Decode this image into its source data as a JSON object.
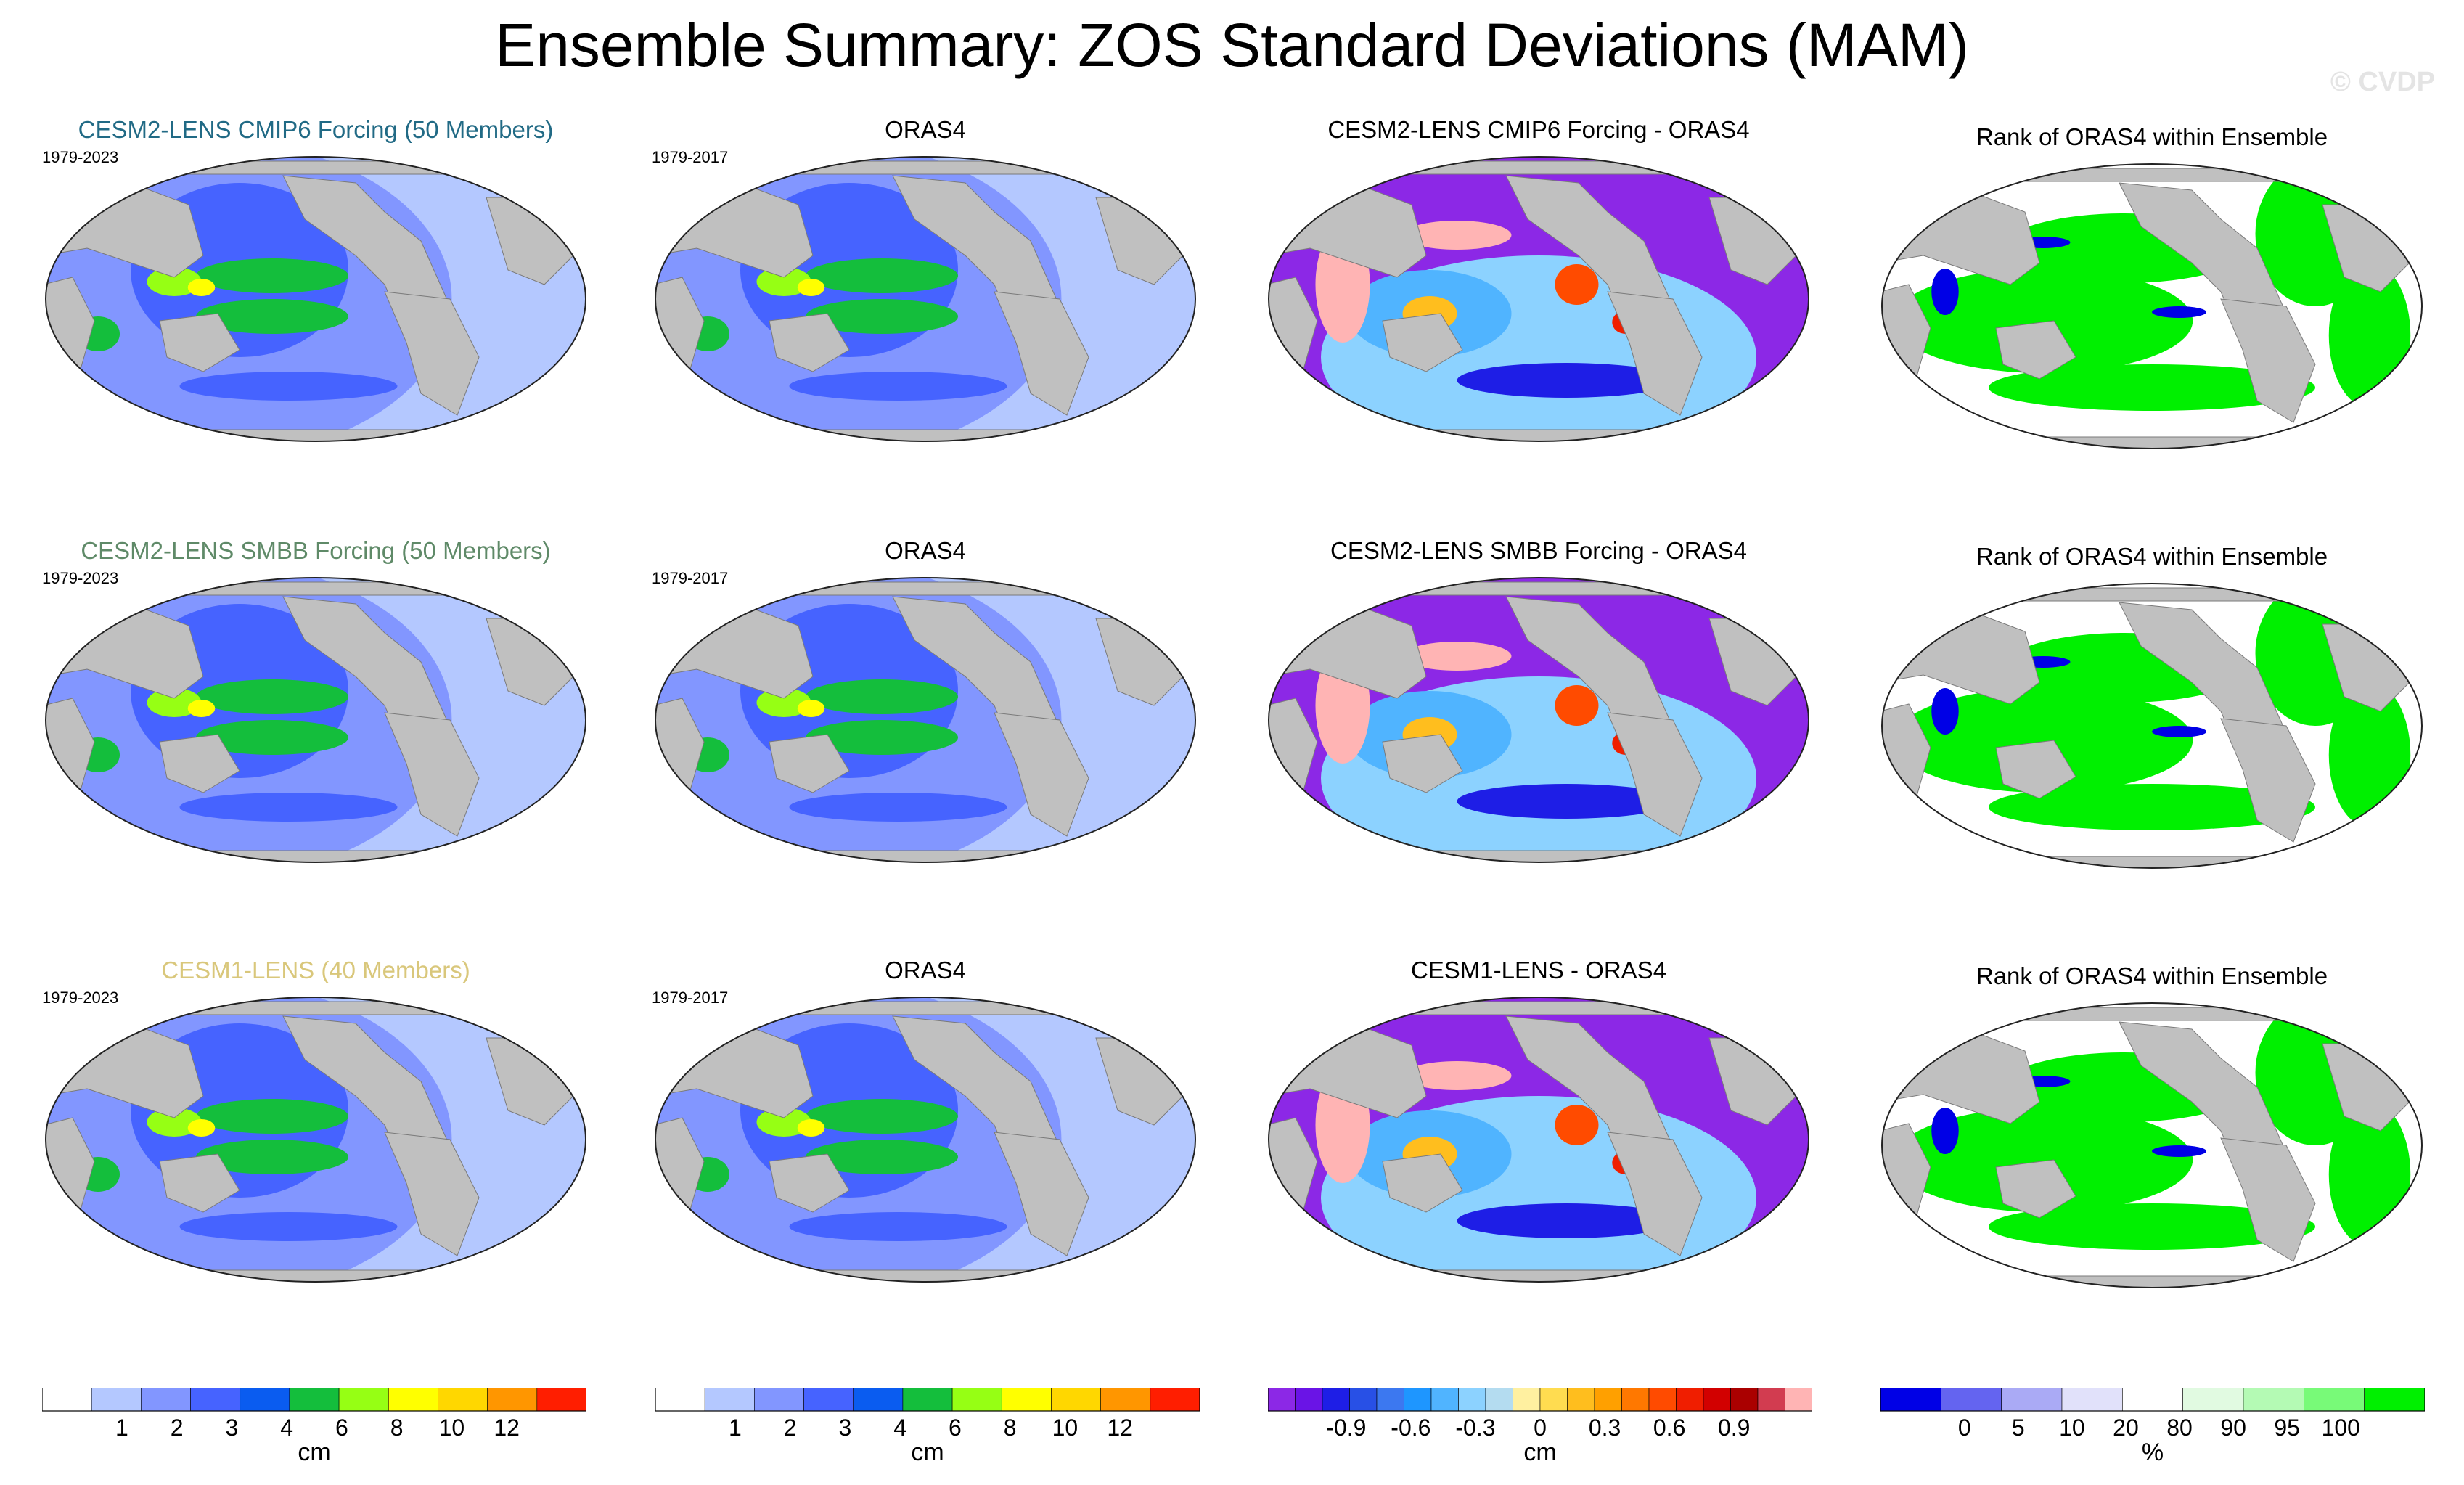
{
  "title": "Ensemble Summary: ZOS Standard Deviations (MAM)",
  "watermark": "© CVDP",
  "rows": [
    {
      "model_title": "CESM2-LENS CMIP6 Forcing (50 Members)",
      "model_title_color": "#216a85",
      "model_period": "1979-2023",
      "obs_title": "ORAS4",
      "obs_period": "1979-2017",
      "diff_title": "CESM2-LENS CMIP6 Forcing - ORAS4",
      "rank_title": "Rank of ORAS4 within Ensemble"
    },
    {
      "model_title": "CESM2-LENS SMBB Forcing (50 Members)",
      "model_title_color": "#5f8a68",
      "model_period": "1979-2023",
      "obs_title": "ORAS4",
      "obs_period": "1979-2017",
      "diff_title": "CESM2-LENS SMBB Forcing - ORAS4",
      "rank_title": "Rank of ORAS4 within Ensemble"
    },
    {
      "model_title": "CESM1-LENS (40 Members)",
      "model_title_color": "#d9c77b",
      "model_period": "1979-2023",
      "obs_title": "ORAS4",
      "obs_period": "1979-2017",
      "diff_title": "CESM1-LENS - ORAS4",
      "rank_title": "Rank of ORAS4 within Ensemble"
    }
  ],
  "chart_data": {
    "type": "heatmap",
    "projection": "global Robinson-style map, Pacific-centered",
    "colorbars": [
      {
        "unit": "cm",
        "labels": [
          "1",
          "2",
          "3",
          "4",
          "6",
          "8",
          "10",
          "12"
        ],
        "colors": [
          "#ffffff",
          "#b4c8ff",
          "#8296ff",
          "#4663ff",
          "#0a5cf0",
          "#14be3c",
          "#96ff14",
          "#ffff00",
          "#ffd700",
          "#ff9600",
          "#ff1e00"
        ]
      },
      {
        "unit": "cm",
        "labels": [
          "1",
          "2",
          "3",
          "4",
          "6",
          "8",
          "10",
          "12"
        ],
        "colors": [
          "#ffffff",
          "#b4c8ff",
          "#8296ff",
          "#4663ff",
          "#0a5cf0",
          "#14be3c",
          "#96ff14",
          "#ffff00",
          "#ffd700",
          "#ff9600",
          "#ff1e00"
        ]
      },
      {
        "unit": "cm",
        "labels": [
          "-0.9",
          "-0.6",
          "-0.3",
          "0",
          "0.3",
          "0.6",
          "0.9"
        ],
        "colors": [
          "#8c28e6",
          "#6a14e6",
          "#1e1ee6",
          "#2850e6",
          "#3c78f0",
          "#1e96ff",
          "#50b4ff",
          "#8cd2ff",
          "#b4dcf0",
          "#fff0a0",
          "#ffdc50",
          "#ffbe1e",
          "#ffa000",
          "#ff7800",
          "#ff4b00",
          "#f01e00",
          "#d20000",
          "#aa0000",
          "#d23c50",
          "#ffb4b4"
        ]
      },
      {
        "unit": "%",
        "labels": [
          "0",
          "5",
          "10",
          "20",
          "80",
          "90",
          "95",
          "100"
        ],
        "colors": [
          "#0000e6",
          "#6464f0",
          "#aaaaf5",
          "#e1e1fa",
          "#ffffff",
          "#e1fae1",
          "#b4fab4",
          "#78fa78",
          "#00f000"
        ]
      }
    ],
    "panels": [
      {
        "row": 0,
        "col": 0,
        "field": "ensemble-mean std dev",
        "units": "cm"
      },
      {
        "row": 0,
        "col": 1,
        "field": "ORAS4 std dev",
        "units": "cm"
      },
      {
        "row": 0,
        "col": 2,
        "field": "difference",
        "units": "cm"
      },
      {
        "row": 0,
        "col": 3,
        "field": "rank",
        "units": "%"
      },
      {
        "row": 1,
        "col": 0,
        "field": "ensemble-mean std dev",
        "units": "cm"
      },
      {
        "row": 1,
        "col": 1,
        "field": "ORAS4 std dev",
        "units": "cm"
      },
      {
        "row": 1,
        "col": 2,
        "field": "difference",
        "units": "cm"
      },
      {
        "row": 1,
        "col": 3,
        "field": "rank",
        "units": "%"
      },
      {
        "row": 2,
        "col": 0,
        "field": "ensemble-mean std dev",
        "units": "cm"
      },
      {
        "row": 2,
        "col": 1,
        "field": "ORAS4 std dev",
        "units": "cm"
      },
      {
        "row": 2,
        "col": 2,
        "field": "difference",
        "units": "cm"
      },
      {
        "row": 2,
        "col": 3,
        "field": "rank",
        "units": "%"
      }
    ]
  }
}
